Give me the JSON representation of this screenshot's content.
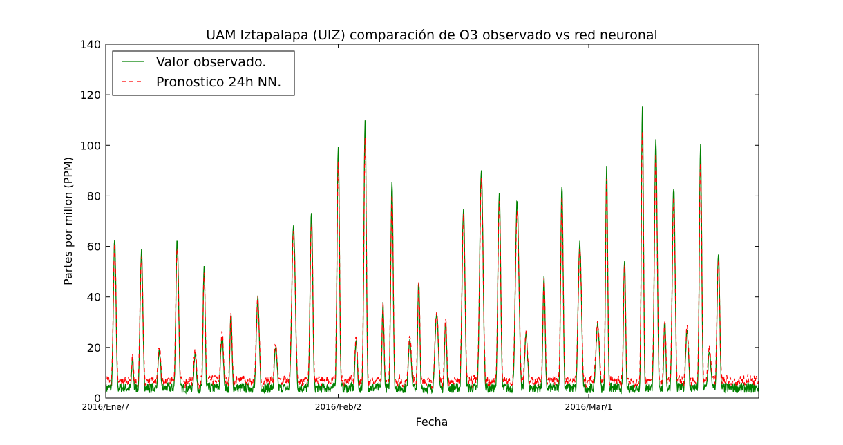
{
  "chart_data": {
    "type": "line",
    "title": "UAM Iztapalapa (UIZ) comparación de O3 observado vs red neuronal",
    "xlabel": "Fecha",
    "ylabel": "Partes por millon (PPM)",
    "ylim": [
      0,
      140
    ],
    "yticks": [
      0,
      20,
      40,
      60,
      80,
      100,
      120,
      140
    ],
    "x_range_days": [
      0,
      73
    ],
    "xtick_labels": [
      {
        "day": 0,
        "label": "2016/Ene/7"
      },
      {
        "day": 26,
        "label": "2016/Feb/2"
      },
      {
        "day": 54,
        "label": "2016/Mar/1"
      }
    ],
    "legend_position": "top-left",
    "grid": false,
    "series": [
      {
        "name": "Valor observado.",
        "color": "#008000",
        "style": "solid",
        "peaks": [
          {
            "day": 1,
            "value": 62
          },
          {
            "day": 3,
            "value": 15
          },
          {
            "day": 4,
            "value": 58
          },
          {
            "day": 6,
            "value": 19
          },
          {
            "day": 8,
            "value": 63
          },
          {
            "day": 10,
            "value": 17
          },
          {
            "day": 11,
            "value": 52
          },
          {
            "day": 13,
            "value": 25
          },
          {
            "day": 14,
            "value": 33
          },
          {
            "day": 17,
            "value": 40
          },
          {
            "day": 19,
            "value": 20
          },
          {
            "day": 21,
            "value": 68
          },
          {
            "day": 23,
            "value": 74
          },
          {
            "day": 26,
            "value": 99
          },
          {
            "day": 28,
            "value": 23
          },
          {
            "day": 29,
            "value": 110
          },
          {
            "day": 31,
            "value": 37
          },
          {
            "day": 32,
            "value": 85
          },
          {
            "day": 34,
            "value": 22
          },
          {
            "day": 35,
            "value": 46
          },
          {
            "day": 37,
            "value": 34
          },
          {
            "day": 38,
            "value": 30
          },
          {
            "day": 40,
            "value": 75
          },
          {
            "day": 42,
            "value": 90
          },
          {
            "day": 44,
            "value": 81
          },
          {
            "day": 46,
            "value": 78
          },
          {
            "day": 47,
            "value": 25
          },
          {
            "day": 49,
            "value": 47
          },
          {
            "day": 51,
            "value": 84
          },
          {
            "day": 53,
            "value": 61
          },
          {
            "day": 55,
            "value": 29
          },
          {
            "day": 56,
            "value": 91
          },
          {
            "day": 58,
            "value": 55
          },
          {
            "day": 60,
            "value": 115
          },
          {
            "day": 61.5,
            "value": 102
          },
          {
            "day": 62.5,
            "value": 30
          },
          {
            "day": 63.5,
            "value": 84
          },
          {
            "day": 65,
            "value": 27
          },
          {
            "day": 66.5,
            "value": 99
          },
          {
            "day": 67.5,
            "value": 17
          },
          {
            "day": 68.5,
            "value": 58
          }
        ]
      },
      {
        "name": "Pronostico 24h NN.",
        "color": "#ff0000",
        "style": "dashed"
      }
    ]
  }
}
